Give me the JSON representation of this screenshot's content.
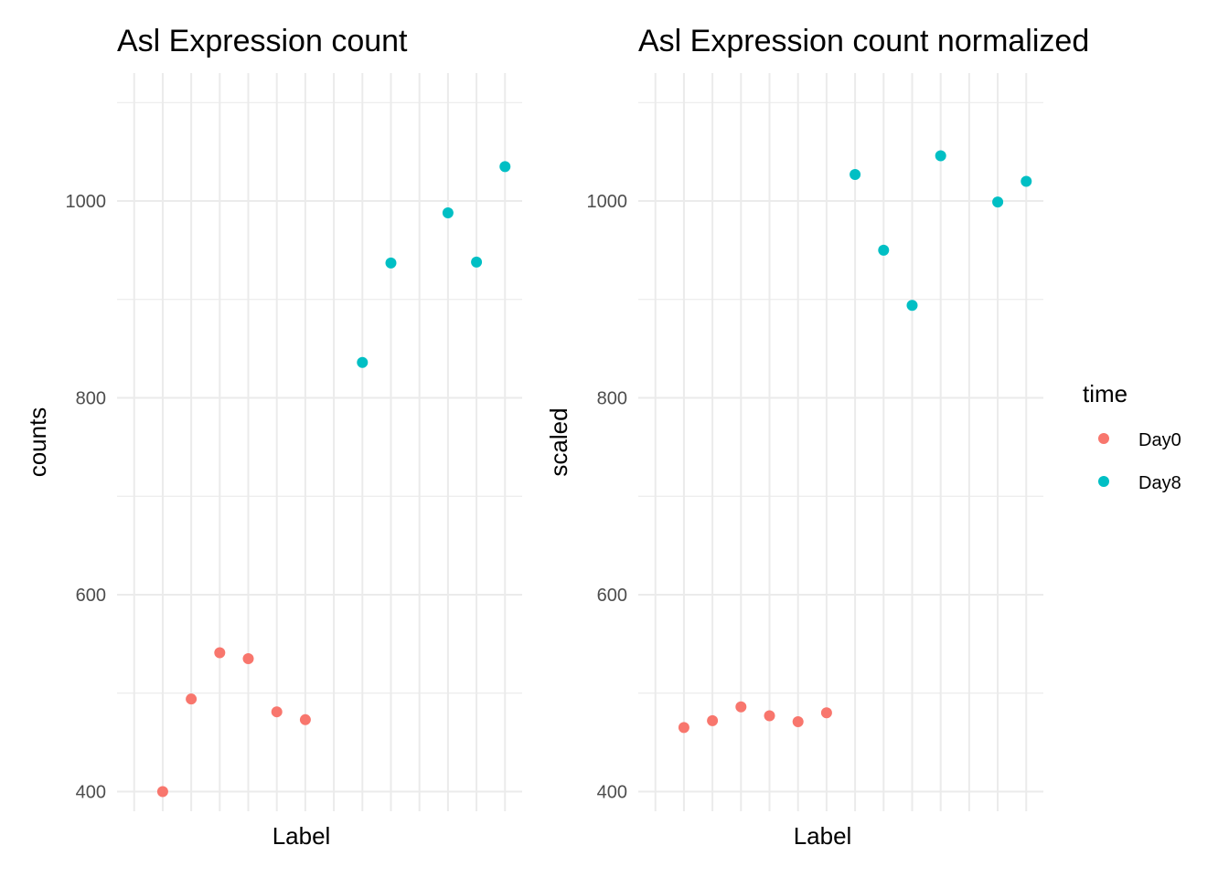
{
  "chart_data": [
    {
      "type": "scatter",
      "title": "Asl Expression count",
      "xlabel": "Label",
      "ylabel": "counts",
      "ylim": [
        380,
        1130
      ],
      "yticks": [
        400,
        600,
        800,
        1000
      ],
      "x_positions": 14,
      "grid": true,
      "series": [
        {
          "name": "Day0",
          "points": [
            {
              "x": 2,
              "y": 400
            },
            {
              "x": 3,
              "y": 494
            },
            {
              "x": 4,
              "y": 541
            },
            {
              "x": 5,
              "y": 535
            },
            {
              "x": 6,
              "y": 481
            },
            {
              "x": 7,
              "y": 473
            }
          ]
        },
        {
          "name": "Day8",
          "points": [
            {
              "x": 9,
              "y": 836
            },
            {
              "x": 10,
              "y": 937
            },
            {
              "x": 12,
              "y": 988
            },
            {
              "x": 13,
              "y": 938
            },
            {
              "x": 14,
              "y": 1035
            }
          ]
        }
      ]
    },
    {
      "type": "scatter",
      "title": "Asl Expression count normalized",
      "xlabel": "Label",
      "ylabel": "scaled",
      "ylim": [
        380,
        1130
      ],
      "yticks": [
        400,
        600,
        800,
        1000
      ],
      "x_positions": 14,
      "grid": true,
      "series": [
        {
          "name": "Day0",
          "points": [
            {
              "x": 2,
              "y": 465
            },
            {
              "x": 3,
              "y": 472
            },
            {
              "x": 4,
              "y": 486
            },
            {
              "x": 5,
              "y": 477
            },
            {
              "x": 6,
              "y": 471
            },
            {
              "x": 7,
              "y": 480
            }
          ]
        },
        {
          "name": "Day8",
          "points": [
            {
              "x": 8,
              "y": 1027
            },
            {
              "x": 9,
              "y": 950
            },
            {
              "x": 10,
              "y": 894
            },
            {
              "x": 11,
              "y": 1046
            },
            {
              "x": 13,
              "y": 999
            },
            {
              "x": 14,
              "y": 1020
            }
          ]
        }
      ]
    }
  ],
  "legend": {
    "title": "time",
    "placement": "right",
    "items": [
      {
        "label": "Day0",
        "color": "#F8766D"
      },
      {
        "label": "Day8",
        "color": "#00BFC4"
      }
    ]
  },
  "colors": {
    "Day0": "#F8766D",
    "Day8": "#00BFC4",
    "grid": "#EBEBEB"
  }
}
